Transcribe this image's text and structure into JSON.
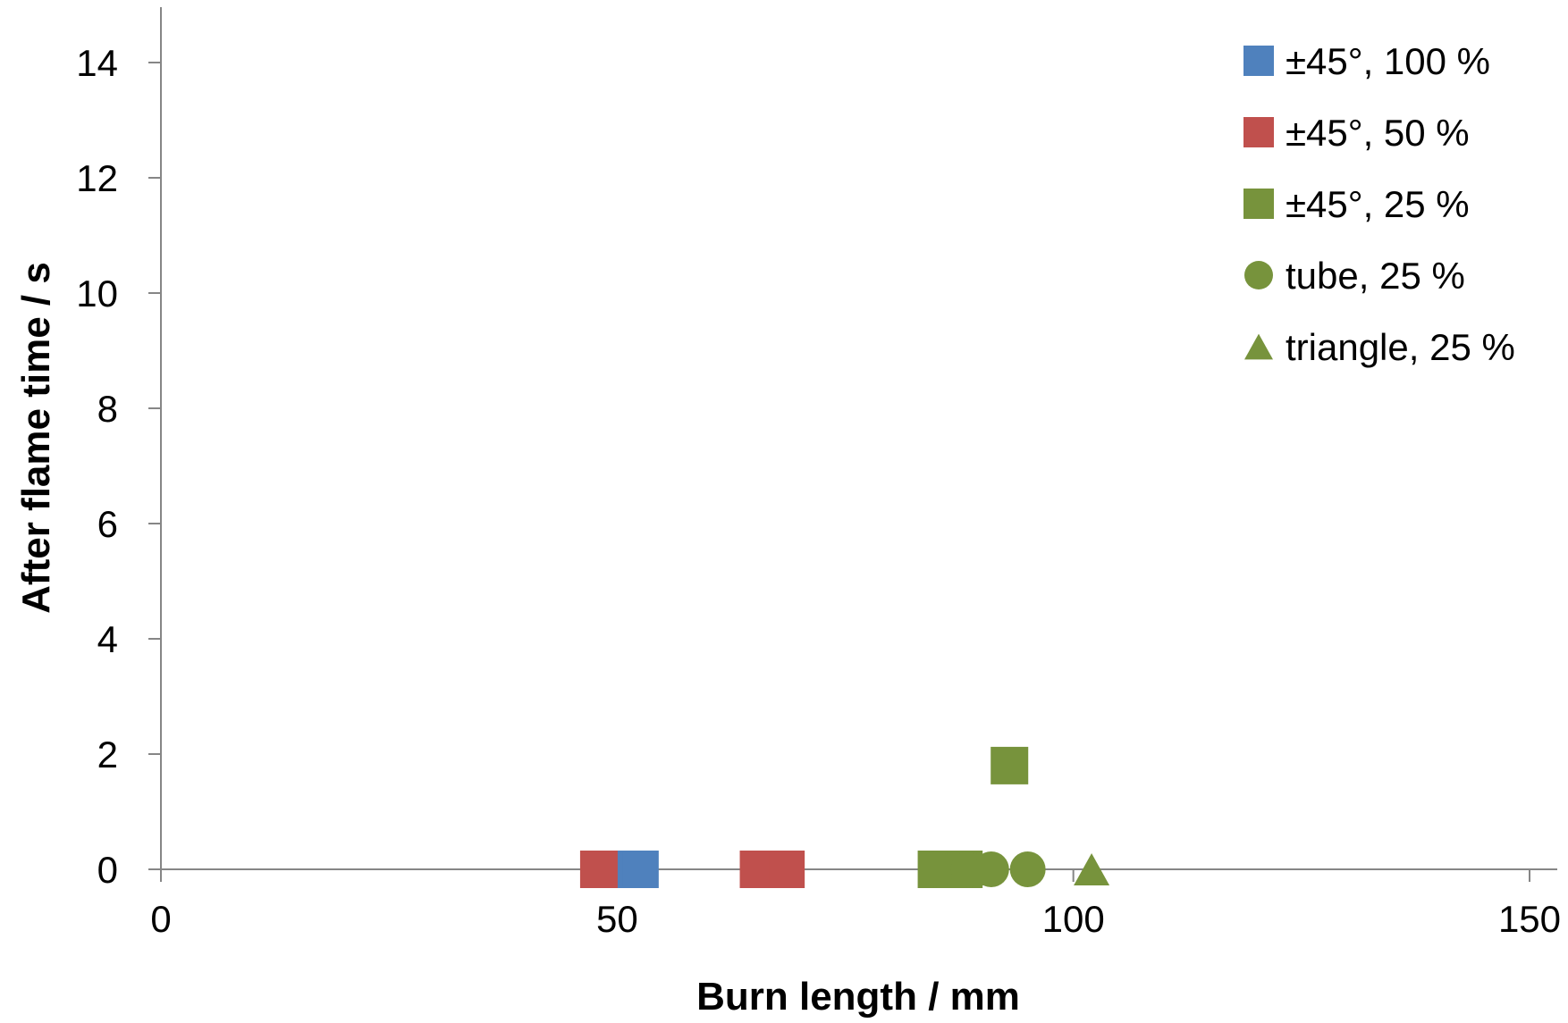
{
  "chart_data": {
    "type": "scatter",
    "xlabel": "Burn length / mm",
    "ylabel": "After flame time / s",
    "xlim": [
      0,
      150
    ],
    "ylim": [
      0,
      14
    ],
    "xticks": [
      "0",
      "50",
      "100",
      "150"
    ],
    "yticks": [
      "0",
      "2",
      "4",
      "6",
      "8",
      "10",
      "12",
      "14"
    ],
    "grid": false,
    "legend_position": "top-right",
    "series": [
      {
        "name": "±45°, 100 %",
        "marker": "square",
        "color": "#4f81bd",
        "points": [
          {
            "x": 52,
            "y": 0
          },
          {
            "x": 52.5,
            "y": 0
          }
        ]
      },
      {
        "name": "±45°, 50 %",
        "marker": "square",
        "color": "#c0504d",
        "points": [
          {
            "x": 48,
            "y": 0
          },
          {
            "x": 65.5,
            "y": 0
          },
          {
            "x": 68.5,
            "y": 0
          }
        ]
      },
      {
        "name": "±45°, 25 %",
        "marker": "square",
        "color": "#77933c",
        "points": [
          {
            "x": 85,
            "y": 0
          },
          {
            "x": 88,
            "y": 0
          },
          {
            "x": 93,
            "y": 1.8
          }
        ]
      },
      {
        "name": "tube, 25 %",
        "marker": "circle",
        "color": "#77933c",
        "points": [
          {
            "x": 85,
            "y": 0
          },
          {
            "x": 88.5,
            "y": 0
          },
          {
            "x": 91,
            "y": 0
          },
          {
            "x": 95,
            "y": 0
          }
        ]
      },
      {
        "name": "triangle, 25 %",
        "marker": "triangle",
        "color": "#77933c",
        "points": [
          {
            "x": 89,
            "y": 0
          },
          {
            "x": 102,
            "y": 0
          }
        ]
      }
    ]
  }
}
